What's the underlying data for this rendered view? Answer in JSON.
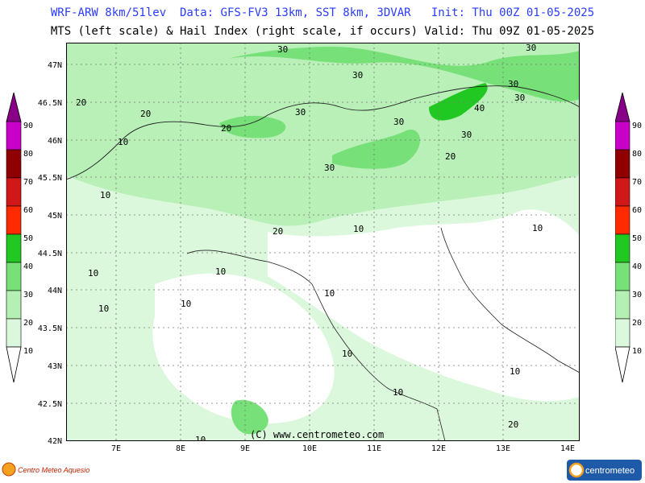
{
  "header": {
    "line1": "WRF-ARW 8km/51lev  Data: GFS-FV3 13km, SST 8km, 3DVAR   Init: Thu 00Z 01-05-2025",
    "line2": "MTS (left scale) & Hail Index (right scale, if occurs) Valid: Thu 09Z 01-05-2025"
  },
  "map": {
    "lat_labels": [
      "47N",
      "46.5N",
      "46N",
      "45.5N",
      "45N",
      "44.5N",
      "44N",
      "43.5N",
      "43N",
      "42.5N",
      "42N"
    ],
    "lon_labels": [
      "7E",
      "8E",
      "9E",
      "10E",
      "11E",
      "12E",
      "13E",
      "14E"
    ],
    "contour_labels": [
      "30",
      "30",
      "30",
      "30",
      "20",
      "20",
      "30",
      "30",
      "40",
      "30",
      "10",
      "30",
      "30",
      "20",
      "20",
      "10",
      "10",
      "20",
      "10",
      "10",
      "10",
      "10",
      "10",
      "10",
      "10",
      "10",
      "10",
      "10",
      "20"
    ],
    "copyright": "(C) www.centrometeo.com"
  },
  "colorbar": {
    "levels": [
      "10",
      "20",
      "30",
      "40",
      "50",
      "60",
      "70",
      "80",
      "90"
    ],
    "colors": [
      "#dcf8dc",
      "#b4f0b4",
      "#78e078",
      "#22c822",
      "#ff2a00",
      "#d01818",
      "#900000",
      "#c800c8",
      "#880088"
    ]
  },
  "branding": {
    "left_logo_text": "Centro Meteo Aquesio",
    "right_logo_text": "centrometeo"
  }
}
